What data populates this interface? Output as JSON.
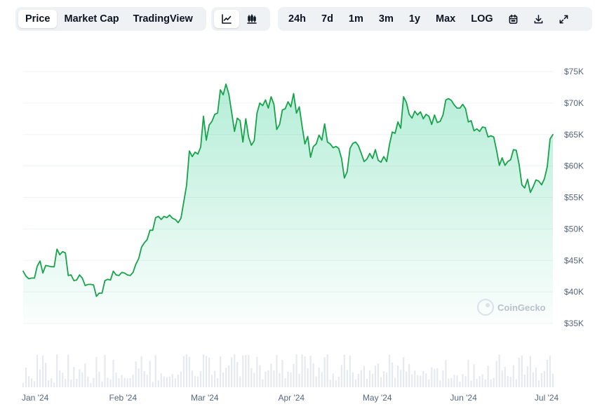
{
  "tabs": [
    {
      "label": "Price",
      "active": true
    },
    {
      "label": "Market Cap",
      "active": false
    },
    {
      "label": "TradingView",
      "active": false
    }
  ],
  "chart_types": [
    {
      "icon": "line-chart-icon",
      "active": true
    },
    {
      "icon": "candlestick-chart-icon",
      "active": false
    }
  ],
  "ranges": [
    {
      "label": "24h"
    },
    {
      "label": "7d"
    },
    {
      "label": "1m"
    },
    {
      "label": "3m"
    },
    {
      "label": "1y"
    },
    {
      "label": "Max"
    },
    {
      "label": "LOG"
    }
  ],
  "tools": [
    {
      "icon": "calendar-icon"
    },
    {
      "icon": "download-icon"
    },
    {
      "icon": "expand-icon"
    }
  ],
  "watermark": "CoinGecko",
  "colors": {
    "line": "#16c784",
    "line_dark": "#16a34a",
    "fill": "#16c784",
    "grid": "#eff2f5",
    "volume": "#e6e9ee"
  },
  "chart_data": {
    "type": "area",
    "title": "",
    "xlabel": "",
    "ylabel": "",
    "y_ticks": [
      "$35K",
      "$40K",
      "$45K",
      "$50K",
      "$55K",
      "$60K",
      "$65K",
      "$70K",
      "$75K"
    ],
    "ylim": [
      35000,
      75000
    ],
    "x_ticks": [
      {
        "label": "Jan '24",
        "day": 0
      },
      {
        "label": "Feb '24",
        "day": 31
      },
      {
        "label": "Mar '24",
        "day": 60
      },
      {
        "label": "Apr '24",
        "day": 91
      },
      {
        "label": "May '24",
        "day": 121
      },
      {
        "label": "Jun '24",
        "day": 152
      },
      {
        "label": "Jul '24",
        "day": 182
      }
    ],
    "grid": true,
    "legend": "none",
    "series": [
      {
        "values": [
          43300,
          42500,
          42100,
          42200,
          42200,
          44100,
          44900,
          43000,
          44200,
          44100,
          44000,
          44000,
          46800,
          45900,
          46400,
          46200,
          42600,
          42700,
          41800,
          41900,
          42700,
          42200,
          41000,
          41200,
          41200,
          41100,
          39300,
          39800,
          39800,
          41800,
          42000,
          41900,
          43300,
          42700,
          42600,
          43100,
          43000,
          42700,
          42600,
          43100,
          44400,
          45300,
          47100,
          47800,
          48300,
          49800,
          49800,
          51800,
          52000,
          51500,
          52000,
          51800,
          52200,
          51700,
          51500,
          51000,
          51700,
          54300,
          56900,
          62400,
          61500,
          62200,
          61900,
          63000,
          67900,
          64100,
          66500,
          67100,
          68200,
          68400,
          72100,
          71300,
          73000,
          71400,
          68500,
          65500,
          67600,
          67200,
          63800,
          67500,
          64600,
          63300,
          64000,
          68400,
          70000,
          69600,
          70500,
          69200,
          71000,
          69800,
          65800,
          66600,
          68900,
          69100,
          70200,
          69400,
          71500,
          68400,
          69400,
          66300,
          63500,
          64700,
          61400,
          63100,
          63500,
          64900,
          64100,
          66700,
          63800,
          63500,
          62900,
          63100,
          62800,
          61200,
          58100,
          59100,
          62800,
          63600,
          63800,
          63200,
          62000,
          60700,
          61100,
          62000,
          61200,
          62600,
          60900,
          60600,
          61500,
          60700,
          63400,
          65400,
          65200,
          67000,
          66000,
          71000,
          70100,
          68200,
          67600,
          68700,
          68100,
          68600,
          67500,
          68200,
          67900,
          66600,
          68100,
          66900,
          67100,
          68100,
          70500,
          70700,
          70400,
          69700,
          69200,
          69200,
          69800,
          69100,
          67000,
          67200,
          65600,
          65900,
          65500,
          66200,
          66100,
          64600,
          64800,
          64600,
          62500,
          60100,
          61300,
          60100,
          60700,
          61000,
          62600,
          62500,
          60300,
          57000,
          56500,
          57900,
          55800,
          56700,
          57800,
          57600,
          57000,
          58000,
          59900,
          64300,
          65000
        ]
      }
    ]
  }
}
